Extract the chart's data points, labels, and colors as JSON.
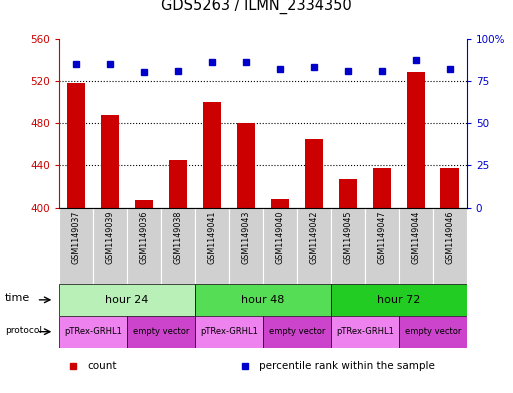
{
  "title": "GDS5263 / ILMN_2334350",
  "samples": [
    "GSM1149037",
    "GSM1149039",
    "GSM1149036",
    "GSM1149038",
    "GSM1149041",
    "GSM1149043",
    "GSM1149040",
    "GSM1149042",
    "GSM1149045",
    "GSM1149047",
    "GSM1149044",
    "GSM1149046"
  ],
  "counts": [
    518,
    488,
    407,
    445,
    500,
    480,
    408,
    465,
    427,
    437,
    528,
    437
  ],
  "percentile_ranks": [
    85,
    85,
    80,
    81,
    86,
    86,
    82,
    83,
    81,
    81,
    87,
    82
  ],
  "ylim_left": [
    400,
    560
  ],
  "yticks_left": [
    400,
    440,
    480,
    520,
    560
  ],
  "ylim_right": [
    0,
    100
  ],
  "yticks_right": [
    0,
    25,
    50,
    75,
    100
  ],
  "time_groups": [
    {
      "label": "hour 24",
      "start": 0,
      "end": 4,
      "color": "#b8f0b8"
    },
    {
      "label": "hour 48",
      "start": 4,
      "end": 8,
      "color": "#55dd55"
    },
    {
      "label": "hour 72",
      "start": 8,
      "end": 12,
      "color": "#22cc22"
    }
  ],
  "protocol_groups": [
    {
      "label": "pTRex-GRHL1",
      "start": 0,
      "end": 2,
      "color": "#ee82ee"
    },
    {
      "label": "empty vector",
      "start": 2,
      "end": 4,
      "color": "#cc44cc"
    },
    {
      "label": "pTRex-GRHL1",
      "start": 4,
      "end": 6,
      "color": "#ee82ee"
    },
    {
      "label": "empty vector",
      "start": 6,
      "end": 8,
      "color": "#cc44cc"
    },
    {
      "label": "pTRex-GRHL1",
      "start": 8,
      "end": 10,
      "color": "#ee82ee"
    },
    {
      "label": "empty vector",
      "start": 10,
      "end": 12,
      "color": "#cc44cc"
    }
  ],
  "bar_color": "#cc0000",
  "dot_color": "#0000cc",
  "bar_width": 0.55,
  "left_axis_color": "#cc0000",
  "right_axis_color": "#0000cc",
  "sample_box_color": "#d0d0d0",
  "legend_items": [
    {
      "label": "count",
      "color": "#cc0000"
    },
    {
      "label": "percentile rank within the sample",
      "color": "#0000cc"
    }
  ],
  "grid_dotted_ticks": [
    440,
    480,
    520
  ]
}
